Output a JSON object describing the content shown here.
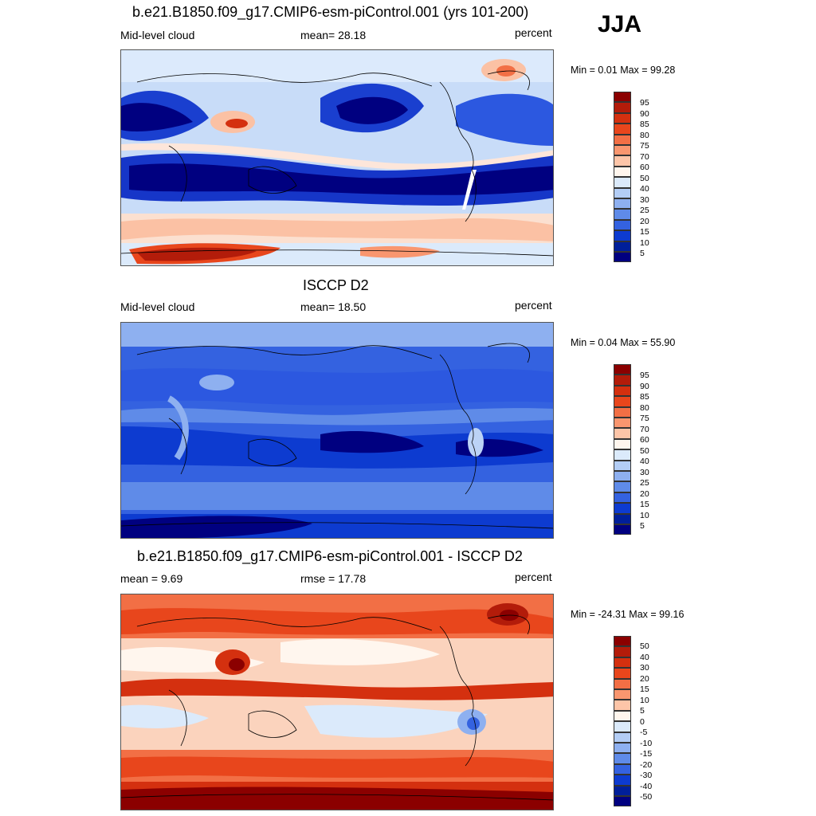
{
  "season": "JJA",
  "panels": [
    {
      "title": "b.e21.B1850.f09_g17.CMIP6-esm-piControl.001 (yrs 101-200)",
      "left_label": "Mid-level cloud",
      "center_label": "mean=  28.18",
      "right_label": "percent",
      "minmax": "Min =   0.01 Max =  99.28",
      "colorbar_labels": [
        "95",
        "90",
        "85",
        "80",
        "75",
        "70",
        "60",
        "50",
        "40",
        "30",
        "25",
        "20",
        "15",
        "10",
        "5"
      ]
    },
    {
      "title": "ISCCP D2",
      "left_label": "Mid-level cloud",
      "center_label": "mean=  18.50",
      "right_label": "percent",
      "minmax": "Min =   0.04 Max =  55.90",
      "colorbar_labels": [
        "95",
        "90",
        "85",
        "80",
        "75",
        "70",
        "60",
        "50",
        "40",
        "30",
        "25",
        "20",
        "15",
        "10",
        "5"
      ]
    },
    {
      "title": "b.e21.B1850.f09_g17.CMIP6-esm-piControl.001 - ISCCP D2",
      "left_label": "mean =   9.69",
      "center_label": "rmse =  17.78",
      "right_label": "percent",
      "minmax": "Min = -24.31 Max =  99.16",
      "colorbar_labels": [
        "50",
        "40",
        "30",
        "20",
        "15",
        "10",
        "5",
        "0",
        "-5",
        "-10",
        "-15",
        "-20",
        "-30",
        "-40",
        "-50"
      ]
    }
  ],
  "colorbar_colors": [
    "#8b0000",
    "#b31c0a",
    "#d4300f",
    "#e8461c",
    "#f26f45",
    "#f9966f",
    "#fdc5a8",
    "#fff6ee",
    "#dbeafb",
    "#b3cdf5",
    "#8eb0f0",
    "#5f8be8",
    "#3462e0",
    "#0d3bd0",
    "#001f9a",
    "#000080"
  ],
  "colors": {
    "deep_blue": "#000080",
    "mid_blue": "#2c58e0",
    "light_blue": "#bcd3f6",
    "white": "#fff8f2",
    "light_red": "#fbc1a4",
    "red": "#ea4a20",
    "dark_red": "#8b0000"
  }
}
